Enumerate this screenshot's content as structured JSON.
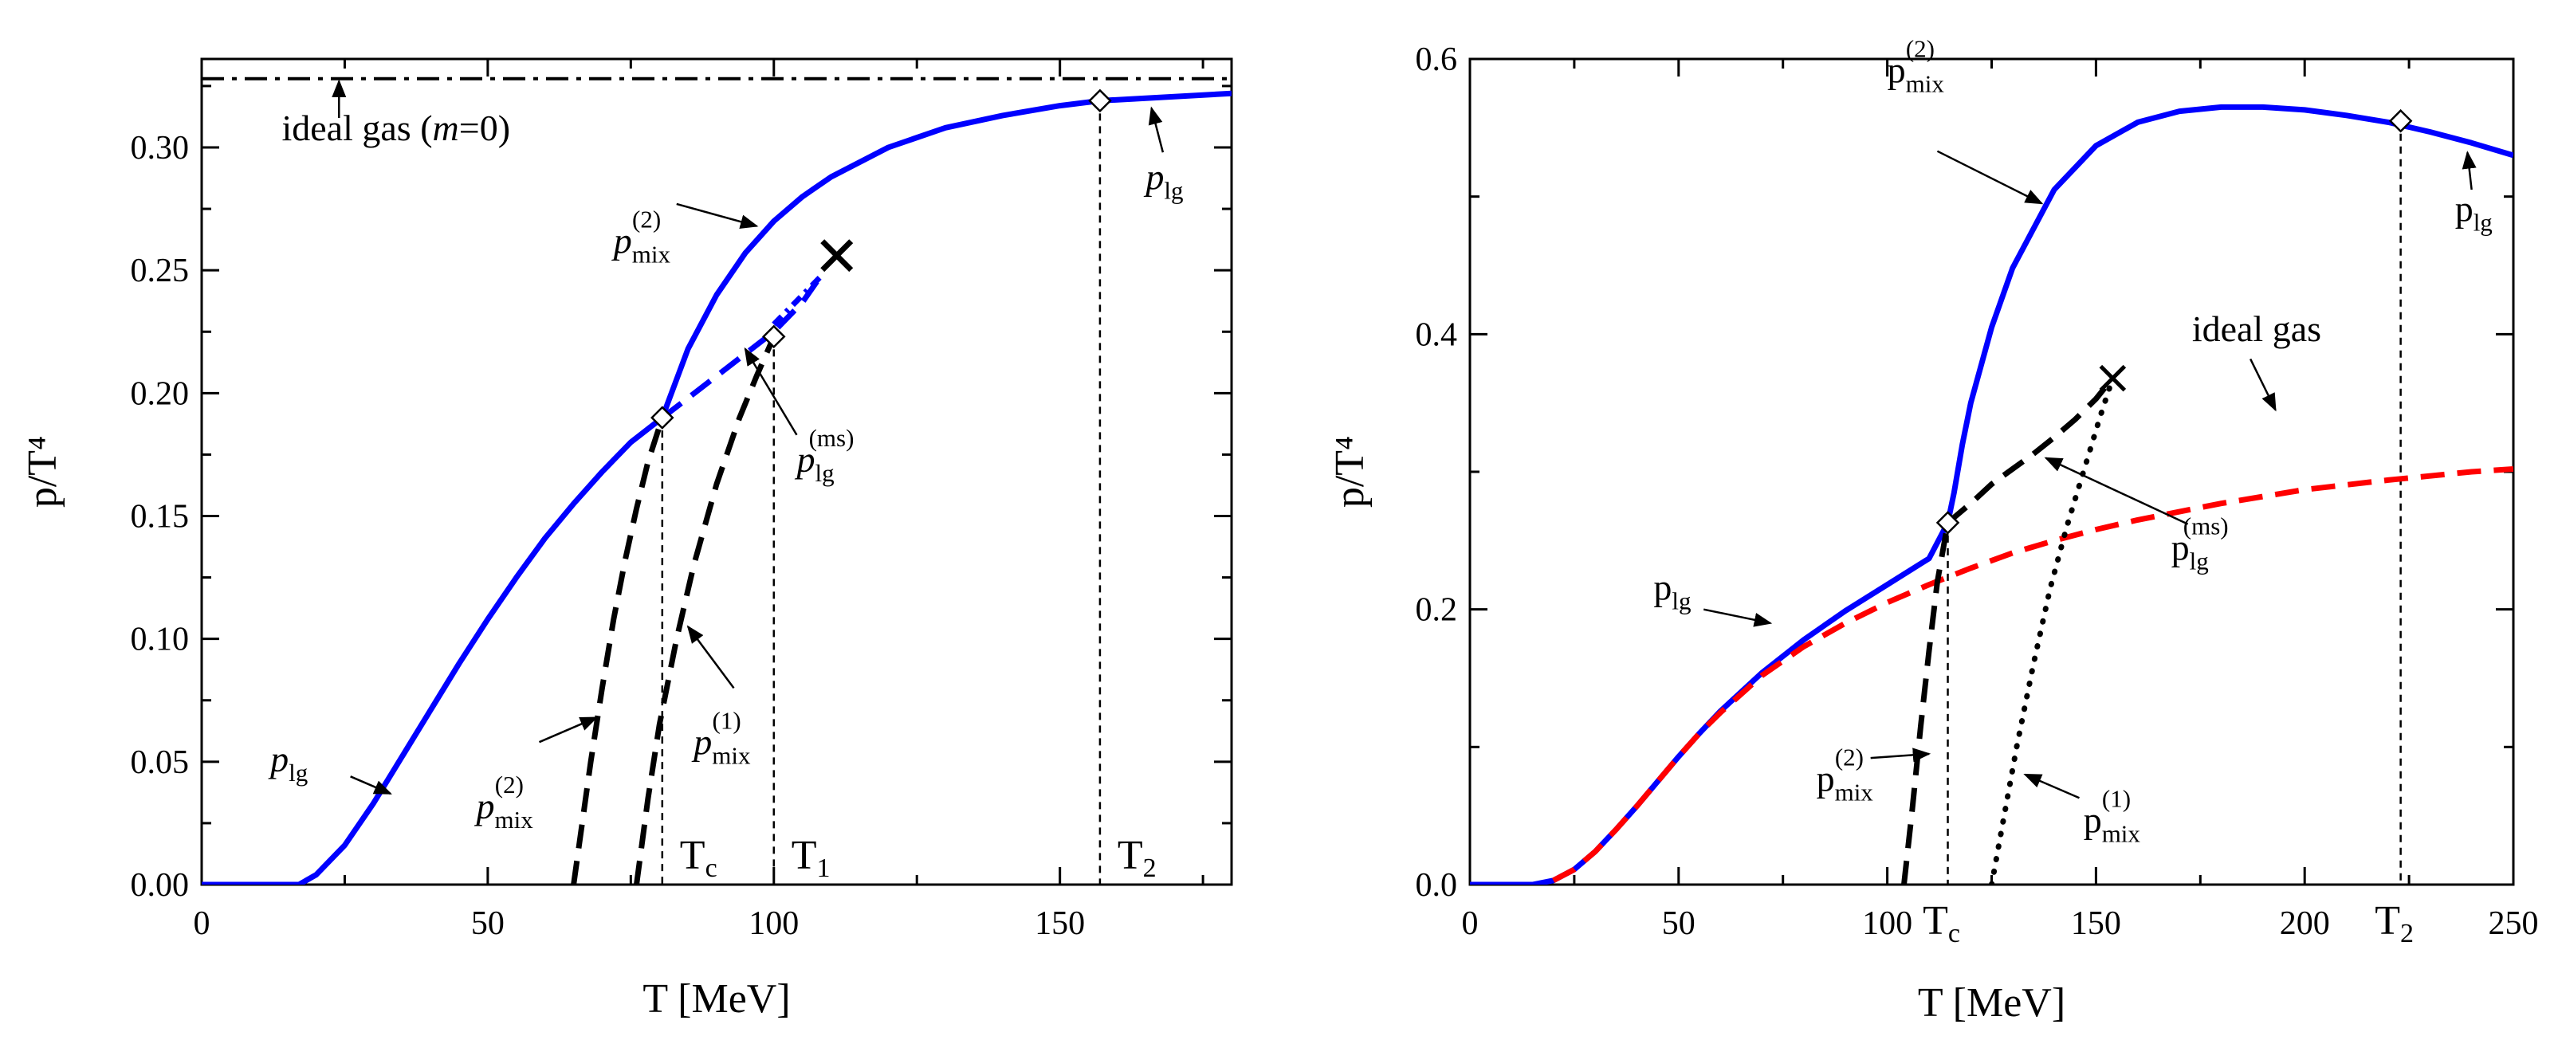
{
  "chart_data": [
    {
      "type": "line",
      "xlabel": "T [MeV]",
      "ylabel": "p/T⁴",
      "xlim": [
        0,
        180
      ],
      "ylim": [
        0,
        0.336
      ],
      "xticks": [
        0,
        50,
        100,
        150
      ],
      "yticks": [
        0.0,
        0.05,
        0.1,
        0.15,
        0.2,
        0.25,
        0.3
      ],
      "ytick_labels": [
        "0.00",
        "0.05",
        "0.10",
        "0.15",
        "0.20",
        "0.25",
        "0.30"
      ],
      "grid": false,
      "legend": "none",
      "series": [
        {
          "role": "lg",
          "color": "#0000ff",
          "style": "solid",
          "x": [
            0,
            17,
            20,
            25,
            30,
            35,
            40,
            45,
            50,
            55,
            60,
            65,
            70,
            75,
            80.5,
            85,
            90,
            95,
            100,
            105,
            110,
            120,
            130,
            140,
            150,
            157,
            165,
            180
          ],
          "y": [
            0,
            0,
            0.004,
            0.016,
            0.033,
            0.052,
            0.071,
            0.09,
            0.108,
            0.125,
            0.141,
            0.155,
            0.168,
            0.18,
            0.19,
            0.218,
            0.24,
            0.257,
            0.27,
            0.28,
            0.288,
            0.3,
            0.308,
            0.313,
            0.317,
            0.319,
            0.32,
            0.322
          ]
        },
        {
          "role": "lg-ms",
          "color": "#0000ff",
          "style": "dashed",
          "x": [
            80.5,
            85,
            90,
            95,
            100,
            105,
            108
          ],
          "y": [
            0.19,
            0.198,
            0.207,
            0.216,
            0.225,
            0.237,
            0.247
          ]
        },
        {
          "role": "mix2",
          "color": "#000000",
          "style": "dashed",
          "x": [
            65,
            68,
            70,
            72,
            74,
            76,
            78,
            80.5
          ],
          "y": [
            0.0,
            0.05,
            0.08,
            0.108,
            0.132,
            0.153,
            0.172,
            0.19
          ]
        },
        {
          "role": "mix1",
          "color": "#000000",
          "style": "dashed",
          "x": [
            76,
            78,
            80,
            83,
            86,
            90,
            94,
            97,
            100
          ],
          "y": [
            0.0,
            0.035,
            0.065,
            0.1,
            0.13,
            0.163,
            0.19,
            0.207,
            0.223
          ]
        },
        {
          "role": "ideal",
          "color": "#000000",
          "style": "dashdot",
          "x": [
            0,
            180
          ],
          "y": [
            0.328,
            0.328
          ]
        }
      ],
      "markers": [
        {
          "x": 80.5,
          "y": 0.19
        },
        {
          "x": 100,
          "y": 0.223
        },
        {
          "x": 157,
          "y": 0.319
        }
      ],
      "cross": {
        "x": 111,
        "y": 0.256
      },
      "vlines": [
        {
          "x": 80.5,
          "y": 0.19,
          "label": "T",
          "sub": "c"
        },
        {
          "x": 100,
          "y": 0.223,
          "label": "T",
          "sub": "1"
        },
        {
          "x": 157,
          "y": 0.319,
          "label": "T",
          "sub": "2"
        }
      ],
      "annotations": [
        {
          "text": "ideal gas (",
          "italic": "m",
          "tail": "=0)",
          "tx": 14,
          "ty": 0.303,
          "arrow": [
            [
              24,
              0.312
            ],
            [
              24,
              0.327
            ]
          ]
        },
        {
          "text": "p",
          "sub": "mix",
          "sup": "(2)",
          "tx": 72,
          "ty": 0.257,
          "arrow": [
            [
              83,
              0.277
            ],
            [
              97,
              0.268
            ]
          ]
        },
        {
          "text": "p",
          "sub": "lg",
          "sup": "(ms)",
          "tx": 104,
          "ty": 0.168,
          "arrow": [
            [
              104,
              0.183
            ],
            [
              95,
              0.218
            ]
          ]
        },
        {
          "text": "p",
          "sub": "lg",
          "tx": 165,
          "ty": 0.283,
          "arrow": [
            [
              168,
              0.298
            ],
            [
              166,
              0.316
            ]
          ]
        },
        {
          "text": "p",
          "sub": "lg",
          "tx": 12,
          "ty": 0.046,
          "arrow": [
            [
              26,
              0.044
            ],
            [
              33,
              0.037
            ]
          ]
        },
        {
          "text": "p",
          "sub": "mix",
          "sup": "(2)",
          "tx": 48,
          "ty": 0.027,
          "arrow": [
            [
              59,
              0.058
            ],
            [
              69,
              0.068
            ]
          ]
        },
        {
          "text": "p",
          "sub": "mix",
          "sup": "(1)",
          "tx": 86,
          "ty": 0.053,
          "arrow": [
            [
              93,
              0.08
            ],
            [
              85,
              0.105
            ]
          ]
        }
      ]
    },
    {
      "type": "line",
      "xlabel": "T [MeV]",
      "ylabel": "p/T⁴",
      "xlim": [
        0,
        250
      ],
      "ylim": [
        0,
        0.6
      ],
      "xticks": [
        0,
        50,
        100,
        150,
        200,
        250
      ],
      "yticks": [
        0.0,
        0.2,
        0.4,
        0.6
      ],
      "ytick_labels": [
        "0.0",
        "0.2",
        "0.4",
        "0.6"
      ],
      "grid": false,
      "legend": "none",
      "series": [
        {
          "role": "lg",
          "color": "#0000ff",
          "style": "solid",
          "x": [
            0,
            15,
            20,
            25,
            30,
            35,
            40,
            45,
            50,
            55,
            60,
            70,
            80,
            90,
            100,
            110,
            114.5,
            116,
            118,
            120,
            125,
            130,
            140,
            150,
            160,
            170,
            180,
            190,
            200,
            210,
            220,
            230,
            240,
            250
          ],
          "y": [
            0,
            0,
            0.003,
            0.011,
            0.024,
            0.04,
            0.057,
            0.075,
            0.093,
            0.11,
            0.126,
            0.154,
            0.178,
            0.199,
            0.218,
            0.237,
            0.263,
            0.285,
            0.32,
            0.35,
            0.405,
            0.448,
            0.505,
            0.537,
            0.554,
            0.562,
            0.565,
            0.565,
            0.563,
            0.559,
            0.554,
            0.547,
            0.539,
            0.53
          ]
        },
        {
          "role": "ideal",
          "color": "#ff0000",
          "style": "dashed",
          "x": [
            20,
            25,
            30,
            35,
            40,
            45,
            50,
            55,
            60,
            70,
            80,
            90,
            100,
            110,
            120,
            130,
            140,
            150,
            160,
            180,
            200,
            220,
            240,
            250
          ],
          "y": [
            0.003,
            0.011,
            0.024,
            0.04,
            0.057,
            0.075,
            0.093,
            0.11,
            0.125,
            0.152,
            0.173,
            0.19,
            0.205,
            0.218,
            0.23,
            0.241,
            0.25,
            0.258,
            0.265,
            0.277,
            0.287,
            0.294,
            0.3,
            0.302
          ]
        },
        {
          "role": "lg-ms",
          "color": "#000000",
          "style": "dashed",
          "x": [
            114.5,
            120,
            125,
            130,
            135,
            140,
            145,
            150,
            154
          ],
          "y": [
            0.263,
            0.277,
            0.291,
            0.302,
            0.313,
            0.325,
            0.338,
            0.353,
            0.368
          ]
        },
        {
          "role": "mix2",
          "color": "#000000",
          "style": "dashed",
          "x": [
            104,
            106,
            108,
            110,
            112,
            114.5
          ],
          "y": [
            0.0,
            0.055,
            0.115,
            0.17,
            0.22,
            0.263
          ]
        },
        {
          "role": "mix1",
          "color": "#000000",
          "style": "dotted",
          "x": [
            125,
            128,
            131,
            135,
            139,
            143,
            147,
            151,
            154
          ],
          "y": [
            0.0,
            0.05,
            0.1,
            0.16,
            0.215,
            0.26,
            0.3,
            0.34,
            0.368
          ]
        }
      ],
      "markers": [
        {
          "x": 114.5,
          "y": 0.263
        },
        {
          "x": 223,
          "y": 0.555
        }
      ],
      "cross": {
        "x": 154,
        "y": 0.368
      },
      "vlines": [
        {
          "x": 114.5,
          "y": 0.263,
          "label": "T",
          "sub": "c"
        },
        {
          "x": 223,
          "y": 0.555,
          "label": "T",
          "sub": "2"
        }
      ],
      "annotations": [
        {
          "text": "p",
          "sub": "mix",
          "sup": "(2)",
          "tx": 100,
          "ty": 0.583,
          "arrow": [
            [
              112,
              0.533
            ],
            [
              137,
              0.495
            ]
          ]
        },
        {
          "text": "p",
          "sub": "lg",
          "tx": 236,
          "ty": 0.482,
          "arrow": [
            [
              240,
              0.505
            ],
            [
              239,
              0.532
            ]
          ]
        },
        {
          "text": "ideal gas",
          "tx": 173,
          "ty": 0.395,
          "arrow": [
            [
              187,
              0.382
            ],
            [
              193,
              0.345
            ]
          ]
        },
        {
          "text": "p",
          "sub": "lg",
          "sup": "(ms)",
          "tx": 168,
          "ty": 0.236,
          "arrow": [
            [
              172,
              0.262
            ],
            [
              138,
              0.31
            ]
          ]
        },
        {
          "text": "p",
          "sub": "lg",
          "tx": 44,
          "ty": 0.207,
          "arrow": [
            [
              56,
              0.2
            ],
            [
              72,
              0.19
            ]
          ]
        },
        {
          "text": "p",
          "sub": "mix",
          "sup": "(2)",
          "tx": 83,
          "ty": 0.068,
          "arrow": [
            [
              96,
              0.092
            ],
            [
              110,
              0.095
            ]
          ]
        },
        {
          "text": "p",
          "sub": "mix",
          "sup": "(1)",
          "tx": 147,
          "ty": 0.038,
          "arrow": [
            [
              146,
              0.063
            ],
            [
              133,
              0.08
            ]
          ]
        }
      ]
    }
  ]
}
